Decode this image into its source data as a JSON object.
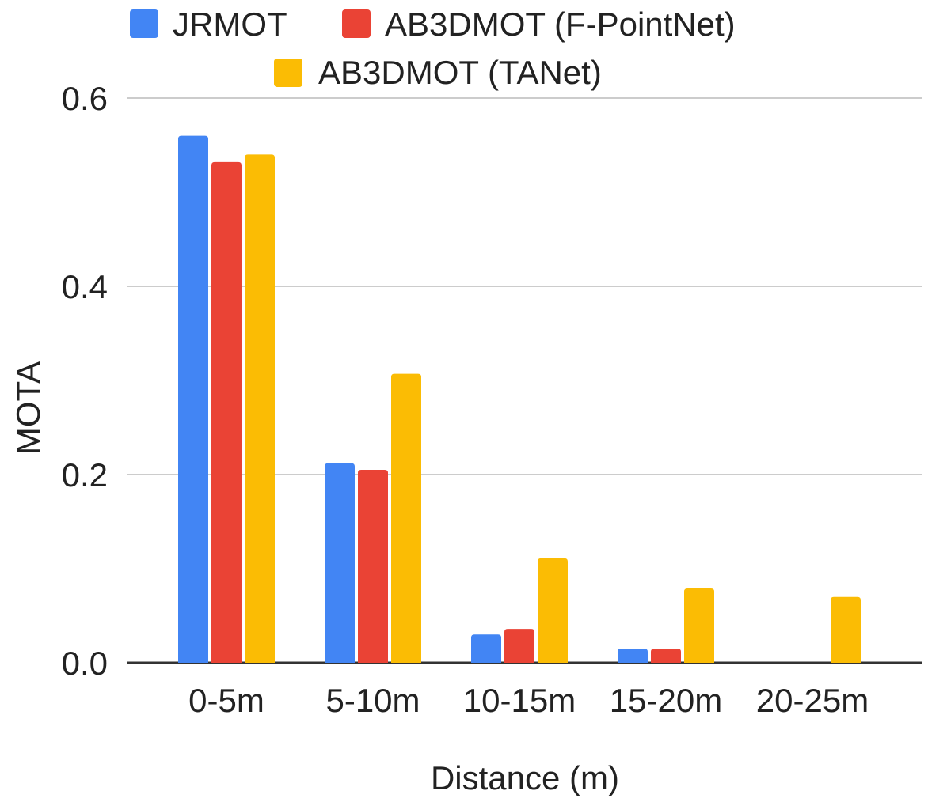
{
  "chart_data": {
    "type": "bar",
    "categories": [
      "0-5m",
      "5-10m",
      "10-15m",
      "15-20m",
      "20-25m"
    ],
    "series": [
      {
        "name": "JRMOT",
        "color": "#4285F4",
        "values": [
          0.56,
          0.212,
          0.03,
          0.015,
          0.0
        ]
      },
      {
        "name": "AB3DMOT (F-PointNet)",
        "color": "#EA4335",
        "values": [
          0.532,
          0.205,
          0.036,
          0.015,
          0.0
        ]
      },
      {
        "name": "AB3DMOT (TANet)",
        "color": "#FBBC04",
        "values": [
          0.54,
          0.307,
          0.111,
          0.079,
          0.07
        ]
      }
    ],
    "xlabel": "Distance (m)",
    "ylabel": "MOTA",
    "ylim": [
      0,
      0.6
    ],
    "yticks": [
      "0.0",
      "0.2",
      "0.4",
      "0.6"
    ],
    "grid": true,
    "legend_position": "top"
  }
}
